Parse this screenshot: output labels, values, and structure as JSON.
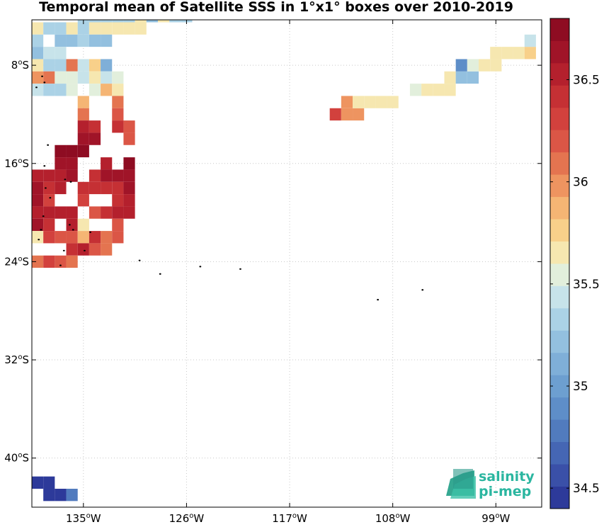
{
  "title": "Temporal mean of Satellite SSS in 1°x1° boxes over 2010-2019",
  "map": {
    "lon_range": [
      -139.5,
      -95
    ],
    "lat_range": [
      -44,
      -4.3
    ],
    "x_ticks": [
      {
        "lon": -135,
        "label": "135",
        "suffix": "W"
      },
      {
        "lon": -126,
        "label": "126",
        "suffix": "W"
      },
      {
        "lon": -117,
        "label": "117",
        "suffix": "W"
      },
      {
        "lon": -108,
        "label": "108",
        "suffix": "W"
      },
      {
        "lon": -99,
        "label": "99",
        "suffix": "W"
      }
    ],
    "y_ticks": [
      {
        "lat": -8,
        "label": "8",
        "suffix": "S"
      },
      {
        "lat": -16,
        "label": "16",
        "suffix": "S"
      },
      {
        "lat": -24,
        "label": "24",
        "suffix": "S"
      },
      {
        "lat": -32,
        "label": "32",
        "suffix": "S"
      },
      {
        "lat": -40,
        "label": "40",
        "suffix": "S"
      }
    ],
    "grid": true
  },
  "colorbar": {
    "min": 34.4,
    "max": 36.8,
    "levels": 22,
    "ticks": [
      "34.5",
      "35",
      "35.5",
      "36",
      "36.5"
    ],
    "colors": [
      "#2d3a9a",
      "#3a50a8",
      "#4566b4",
      "#517bbe",
      "#5e8ec8",
      "#6d9fd0",
      "#7fafd8",
      "#93c0df",
      "#abd2e6",
      "#c7e3ea",
      "#e2efdc",
      "#f6e7b0",
      "#f8d08a",
      "#f5b574",
      "#ee9460",
      "#e47450",
      "#db5646",
      "#d2413d",
      "#c53034",
      "#b4202d",
      "#a01428",
      "#8e0c22"
    ]
  },
  "logo": {
    "line1": "salinity",
    "line2": "pi-mep"
  },
  "chart_data": {
    "type": "heatmap",
    "title": "Temporal mean of Satellite SSS in 1°x1° boxes over 2010-2019",
    "cell_size_deg": 1,
    "value_unit": "SSS",
    "cells": [
      {
        "lon": -139,
        "lat": -5,
        "v": 35.7
      },
      {
        "lon": -138,
        "lat": -5,
        "v": 35.3
      },
      {
        "lon": -137,
        "lat": -5,
        "v": 35.3
      },
      {
        "lon": -136,
        "lat": -5,
        "v": 35.6
      },
      {
        "lon": -135,
        "lat": -5,
        "v": 35.3
      },
      {
        "lon": -134,
        "lat": -5,
        "v": 35.6
      },
      {
        "lon": -133,
        "lat": -5,
        "v": 35.6
      },
      {
        "lon": -132,
        "lat": -5,
        "v": 35.7
      },
      {
        "lon": -131,
        "lat": -5,
        "v": 35.7
      },
      {
        "lon": -130,
        "lat": -5,
        "v": 35.6
      },
      {
        "lon": -135,
        "lat": -4,
        "v": 35.3
      },
      {
        "lon": -134,
        "lat": -4,
        "v": 35.3
      },
      {
        "lon": -133,
        "lat": -4,
        "v": 35.3
      },
      {
        "lon": -132,
        "lat": -4,
        "v": 35.3
      },
      {
        "lon": -131,
        "lat": -4,
        "v": 35.3
      },
      {
        "lon": -130,
        "lat": -4,
        "v": 35.6
      },
      {
        "lon": -129,
        "lat": -4,
        "v": 35.2
      },
      {
        "lon": -128,
        "lat": -4,
        "v": 35.7
      },
      {
        "lon": -127,
        "lat": -4,
        "v": 35.3
      },
      {
        "lon": -126,
        "lat": -4,
        "v": 35.3
      },
      {
        "lon": -139,
        "lat": -6,
        "v": 35.3
      },
      {
        "lon": -137,
        "lat": -6,
        "v": 35.2
      },
      {
        "lon": -136,
        "lat": -6,
        "v": 35.2
      },
      {
        "lon": -135,
        "lat": -6,
        "v": 35.3
      },
      {
        "lon": -134,
        "lat": -6,
        "v": 35.2
      },
      {
        "lon": -133,
        "lat": -6,
        "v": 35.2
      },
      {
        "lon": -139,
        "lat": -7,
        "v": 35.2
      },
      {
        "lon": -138,
        "lat": -7,
        "v": 35.4
      },
      {
        "lon": -137,
        "lat": -7,
        "v": 35.4
      },
      {
        "lon": -139,
        "lat": -8,
        "v": 35.7
      },
      {
        "lon": -138,
        "lat": -8,
        "v": 35.3
      },
      {
        "lon": -137,
        "lat": -8,
        "v": 35.3
      },
      {
        "lon": -136,
        "lat": -8,
        "v": 36.1
      },
      {
        "lon": -135,
        "lat": -8,
        "v": 35.4
      },
      {
        "lon": -134,
        "lat": -8,
        "v": 35.8
      },
      {
        "lon": -133,
        "lat": -8,
        "v": 35.1
      },
      {
        "lon": -139,
        "lat": -9,
        "v": 36.0
      },
      {
        "lon": -138,
        "lat": -9,
        "v": 36.1
      },
      {
        "lon": -137,
        "lat": -9,
        "v": 35.5
      },
      {
        "lon": -136,
        "lat": -9,
        "v": 35.5
      },
      {
        "lon": -135,
        "lat": -9,
        "v": 35.4
      },
      {
        "lon": -134,
        "lat": -9,
        "v": 35.6
      },
      {
        "lon": -133,
        "lat": -9,
        "v": 35.4
      },
      {
        "lon": -132,
        "lat": -9,
        "v": 35.5
      },
      {
        "lon": -139,
        "lat": -10,
        "v": 35.4
      },
      {
        "lon": -138,
        "lat": -10,
        "v": 35.3
      },
      {
        "lon": -137,
        "lat": -10,
        "v": 35.3
      },
      {
        "lon": -136,
        "lat": -10,
        "v": 35.5
      },
      {
        "lon": -134,
        "lat": -10,
        "v": 35.5
      },
      {
        "lon": -133,
        "lat": -10,
        "v": 35.9
      },
      {
        "lon": -132,
        "lat": -10,
        "v": 35.6
      },
      {
        "lon": -135,
        "lat": -11,
        "v": 35.9
      },
      {
        "lon": -132,
        "lat": -11,
        "v": 36.1
      },
      {
        "lon": -135,
        "lat": -12,
        "v": 36.1
      },
      {
        "lon": -132,
        "lat": -12,
        "v": 36.2
      },
      {
        "lon": -135,
        "lat": -13,
        "v": 36.5
      },
      {
        "lon": -134,
        "lat": -13,
        "v": 36.4
      },
      {
        "lon": -132,
        "lat": -13,
        "v": 36.4
      },
      {
        "lon": -131,
        "lat": -13,
        "v": 36.2
      },
      {
        "lon": -135,
        "lat": -14,
        "v": 36.6
      },
      {
        "lon": -134,
        "lat": -14,
        "v": 36.6
      },
      {
        "lon": -131,
        "lat": -14,
        "v": 36.2
      },
      {
        "lon": -137,
        "lat": -15,
        "v": 36.7
      },
      {
        "lon": -136,
        "lat": -15,
        "v": 36.7
      },
      {
        "lon": -135,
        "lat": -15,
        "v": 36.7
      },
      {
        "lon": -137,
        "lat": -16,
        "v": 36.6
      },
      {
        "lon": -136,
        "lat": -16,
        "v": 36.6
      },
      {
        "lon": -133,
        "lat": -16,
        "v": 36.5
      },
      {
        "lon": -131,
        "lat": -16,
        "v": 36.7
      },
      {
        "lon": -139,
        "lat": -17,
        "v": 36.5
      },
      {
        "lon": -138,
        "lat": -17,
        "v": 36.5
      },
      {
        "lon": -137,
        "lat": -17,
        "v": 36.5
      },
      {
        "lon": -136,
        "lat": -17,
        "v": 36.6
      },
      {
        "lon": -134,
        "lat": -17,
        "v": 36.4
      },
      {
        "lon": -133,
        "lat": -17,
        "v": 36.6
      },
      {
        "lon": -132,
        "lat": -17,
        "v": 36.6
      },
      {
        "lon": -131,
        "lat": -17,
        "v": 36.6
      },
      {
        "lon": -139,
        "lat": -18,
        "v": 36.6
      },
      {
        "lon": -138,
        "lat": -18,
        "v": 36.4
      },
      {
        "lon": -137,
        "lat": -18,
        "v": 36.5
      },
      {
        "lon": -135,
        "lat": -18,
        "v": 36.4
      },
      {
        "lon": -134,
        "lat": -18,
        "v": 36.4
      },
      {
        "lon": -133,
        "lat": -18,
        "v": 36.4
      },
      {
        "lon": -132,
        "lat": -18,
        "v": 36.4
      },
      {
        "lon": -131,
        "lat": -18,
        "v": 36.6
      },
      {
        "lon": -139,
        "lat": -19,
        "v": 36.6
      },
      {
        "lon": -138,
        "lat": -19,
        "v": 36.3
      },
      {
        "lon": -135,
        "lat": -19,
        "v": 36.3
      },
      {
        "lon": -132,
        "lat": -19,
        "v": 36.4
      },
      {
        "lon": -131,
        "lat": -19,
        "v": 36.5
      },
      {
        "lon": -139,
        "lat": -20,
        "v": 36.5
      },
      {
        "lon": -138,
        "lat": -20,
        "v": 36.5
      },
      {
        "lon": -137,
        "lat": -20,
        "v": 36.5
      },
      {
        "lon": -136,
        "lat": -20,
        "v": 36.5
      },
      {
        "lon": -134,
        "lat": -20,
        "v": 36.2
      },
      {
        "lon": -133,
        "lat": -20,
        "v": 36.4
      },
      {
        "lon": -132,
        "lat": -20,
        "v": 36.5
      },
      {
        "lon": -131,
        "lat": -20,
        "v": 36.5
      },
      {
        "lon": -139,
        "lat": -21,
        "v": 36.6
      },
      {
        "lon": -138,
        "lat": -21,
        "v": 36.4
      },
      {
        "lon": -136,
        "lat": -21,
        "v": 36.5
      },
      {
        "lon": -135,
        "lat": -21,
        "v": 35.7
      },
      {
        "lon": -132,
        "lat": -21,
        "v": 36.2
      },
      {
        "lon": -139,
        "lat": -22,
        "v": 35.6
      },
      {
        "lon": -138,
        "lat": -22,
        "v": 36.3
      },
      {
        "lon": -137,
        "lat": -22,
        "v": 36.2
      },
      {
        "lon": -136,
        "lat": -22,
        "v": 36.2
      },
      {
        "lon": -135,
        "lat": -22,
        "v": 35.9
      },
      {
        "lon": -134,
        "lat": -22,
        "v": 36.4
      },
      {
        "lon": -133,
        "lat": -22,
        "v": 36.1
      },
      {
        "lon": -132,
        "lat": -22,
        "v": 36.2
      },
      {
        "lon": -136,
        "lat": -23,
        "v": 36.4
      },
      {
        "lon": -135,
        "lat": -23,
        "v": 36.5
      },
      {
        "lon": -134,
        "lat": -23,
        "v": 36.2
      },
      {
        "lon": -133,
        "lat": -23,
        "v": 36.1
      },
      {
        "lon": -139,
        "lat": -24,
        "v": 36.1
      },
      {
        "lon": -138,
        "lat": -24,
        "v": 36.3
      },
      {
        "lon": -137,
        "lat": -24,
        "v": 36.2
      },
      {
        "lon": -136,
        "lat": -24,
        "v": 36.1
      },
      {
        "lon": -113,
        "lat": -12,
        "v": 36.3
      },
      {
        "lon": -112,
        "lat": -12,
        "v": 36.0
      },
      {
        "lon": -111,
        "lat": -12,
        "v": 36.0
      },
      {
        "lon": -112,
        "lat": -11,
        "v": 36.0
      },
      {
        "lon": -111,
        "lat": -11,
        "v": 35.6
      },
      {
        "lon": -110,
        "lat": -11,
        "v": 35.6
      },
      {
        "lon": -109,
        "lat": -11,
        "v": 35.7
      },
      {
        "lon": -108,
        "lat": -11,
        "v": 35.7
      },
      {
        "lon": -106,
        "lat": -10,
        "v": 35.5
      },
      {
        "lon": -105,
        "lat": -10,
        "v": 35.6
      },
      {
        "lon": -104,
        "lat": -10,
        "v": 35.7
      },
      {
        "lon": -103,
        "lat": -10,
        "v": 35.6
      },
      {
        "lon": -103,
        "lat": -9,
        "v": 35.6
      },
      {
        "lon": -102,
        "lat": -9,
        "v": 35.2
      },
      {
        "lon": -101,
        "lat": -9,
        "v": 35.2
      },
      {
        "lon": -102,
        "lat": -8,
        "v": 34.9
      },
      {
        "lon": -101,
        "lat": -8,
        "v": 35.5
      },
      {
        "lon": -100,
        "lat": -8,
        "v": 35.6
      },
      {
        "lon": -99,
        "lat": -8,
        "v": 35.6
      },
      {
        "lon": -99,
        "lat": -7,
        "v": 35.7
      },
      {
        "lon": -98,
        "lat": -7,
        "v": 35.6
      },
      {
        "lon": -97,
        "lat": -7,
        "v": 35.6
      },
      {
        "lon": -96,
        "lat": -7,
        "v": 35.8
      },
      {
        "lon": -96,
        "lat": -6,
        "v": 35.4
      },
      {
        "lon": -139,
        "lat": -42,
        "v": 34.5
      },
      {
        "lon": -138,
        "lat": -42,
        "v": 34.5
      },
      {
        "lon": -138,
        "lat": -43,
        "v": 34.4
      },
      {
        "lon": -137,
        "lat": -43,
        "v": 34.5
      },
      {
        "lon": -136,
        "lat": -43,
        "v": 34.8
      }
    ],
    "islands": [
      {
        "lon": -138.6,
        "lat": -8.9
      },
      {
        "lon": -138.4,
        "lat": -9.4
      },
      {
        "lon": -139.1,
        "lat": -9.8
      },
      {
        "lon": -138.1,
        "lat": -14.5
      },
      {
        "lon": -138.4,
        "lat": -16.2
      },
      {
        "lon": -136.6,
        "lat": -17.3
      },
      {
        "lon": -136.1,
        "lat": -17.5
      },
      {
        "lon": -138.3,
        "lat": -18.0
      },
      {
        "lon": -137.9,
        "lat": -18.8
      },
      {
        "lon": -138.5,
        "lat": -20.3
      },
      {
        "lon": -136.2,
        "lat": -21.0
      },
      {
        "lon": -135.9,
        "lat": -21.4
      },
      {
        "lon": -138.7,
        "lat": -21.4
      },
      {
        "lon": -138.9,
        "lat": -22.2
      },
      {
        "lon": -134.9,
        "lat": -23.1
      },
      {
        "lon": -136.7,
        "lat": -23.1
      },
      {
        "lon": -134.4,
        "lat": -21.6
      },
      {
        "lon": -130.1,
        "lat": -23.9
      },
      {
        "lon": -128.3,
        "lat": -25.0
      },
      {
        "lon": -124.8,
        "lat": -24.4
      },
      {
        "lon": -121.3,
        "lat": -24.6
      },
      {
        "lon": -109.3,
        "lat": -27.1
      },
      {
        "lon": -105.4,
        "lat": -26.3
      },
      {
        "lon": -137.0,
        "lat": -24.3
      }
    ]
  }
}
